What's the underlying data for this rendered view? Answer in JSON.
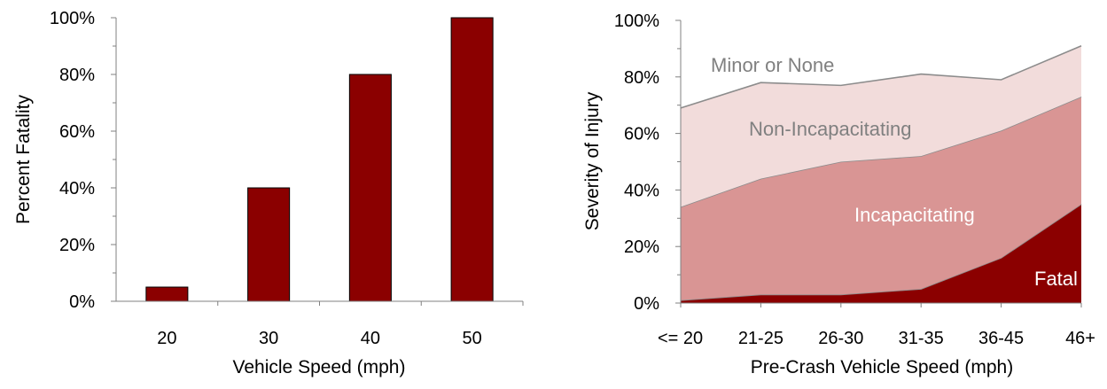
{
  "chart_data": [
    {
      "type": "bar",
      "categories": [
        "20",
        "30",
        "40",
        "50"
      ],
      "values": [
        5,
        40,
        80,
        100
      ],
      "xlabel": "Vehicle Speed (mph)",
      "ylabel": "Percent Fatality",
      "ylim": [
        0,
        100
      ],
      "yticks": [
        "0%",
        "20%",
        "40%",
        "60%",
        "80%",
        "100%"
      ],
      "grid": false,
      "bar_color": "#8b0000"
    },
    {
      "type": "area",
      "stacked": true,
      "categories": [
        "<= 20",
        "21-25",
        "26-30",
        "31-35",
        "36-45",
        "46+"
      ],
      "series": [
        {
          "name": "Fatal",
          "values": [
            1,
            3,
            3,
            5,
            16,
            35
          ],
          "color": "#8b0000"
        },
        {
          "name": "Incapacitating",
          "values": [
            33,
            41,
            47,
            47,
            45,
            38
          ],
          "color": "#d99594"
        },
        {
          "name": "Non-Incapacitating",
          "values": [
            35,
            34,
            27,
            29,
            18,
            18
          ],
          "color": "#f2dcdb"
        }
      ],
      "xlabel": "Pre-Crash Vehicle Speed (mph)",
      "ylabel": "Severity of Injury",
      "ylim": [
        0,
        100
      ],
      "yticks": [
        "0%",
        "20%",
        "40%",
        "60%",
        "80%",
        "100%"
      ],
      "grid": false,
      "area_labels": {
        "minor": "Minor or None",
        "non_incap": "Non-Incapacitating",
        "incap": "Incapacitating",
        "fatal": "Fatal"
      },
      "label_colors": {
        "light": "#808080",
        "dark": "#ffffff"
      }
    }
  ]
}
